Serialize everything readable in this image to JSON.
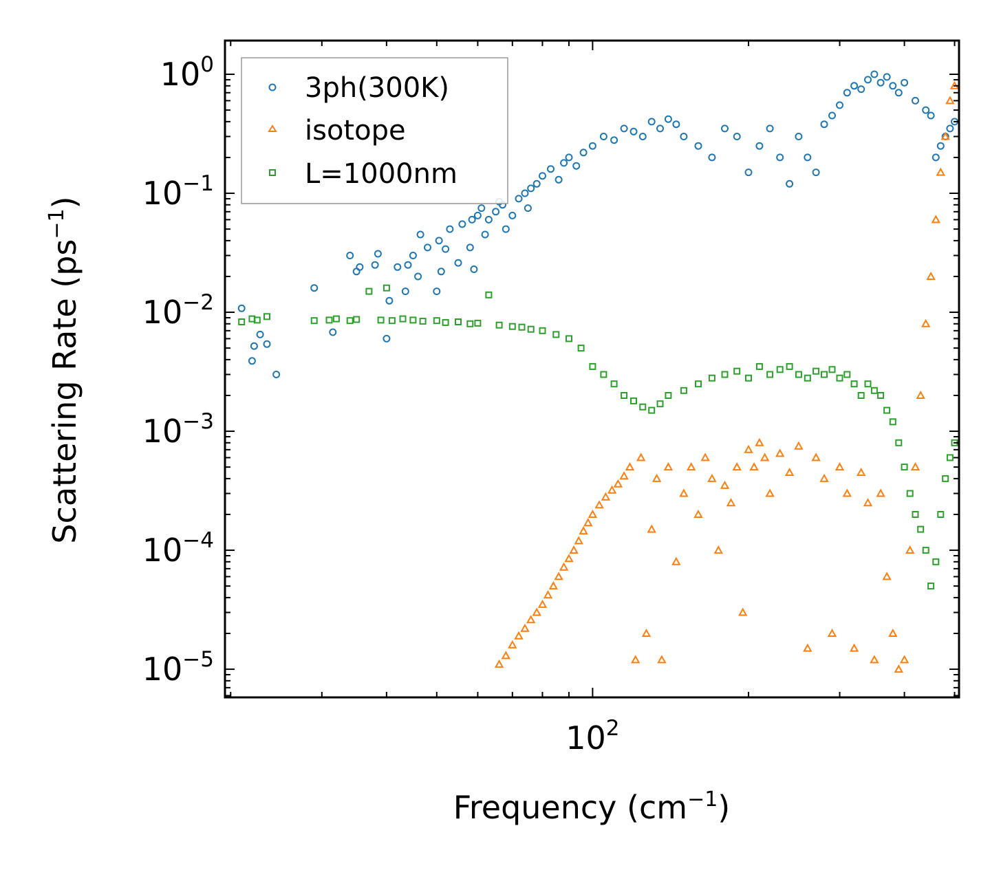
{
  "chart_data": {
    "type": "scatter",
    "title": "",
    "xlabel": "Frequency (cm⁻¹)",
    "xlabel_parts": {
      "base": "Frequency (cm",
      "sup": "−1",
      "end": ")"
    },
    "ylabel": "Scattering Rate (ps⁻¹)",
    "ylabel_parts": {
      "base": "Scattering Rate (ps",
      "sup": "−1",
      "end": ")"
    },
    "xscale": "log",
    "yscale": "log",
    "xlim": [
      19.5,
      510
    ],
    "ylim": [
      5.8e-06,
      1.92
    ],
    "x_ticks": [
      {
        "value": 100,
        "base": "10",
        "exp": "2"
      }
    ],
    "y_ticks": [
      {
        "value": 1,
        "base": "10",
        "exp": "0"
      },
      {
        "value": 0.1,
        "base": "10",
        "exp": "−1"
      },
      {
        "value": 0.01,
        "base": "10",
        "exp": "−2"
      },
      {
        "value": 0.001,
        "base": "10",
        "exp": "−3"
      },
      {
        "value": 0.0001,
        "base": "10",
        "exp": "−4"
      },
      {
        "value": 1e-05,
        "base": "10",
        "exp": "−5"
      }
    ],
    "legend_position": "top-left",
    "series": [
      {
        "name": "3ph(300K)",
        "marker": "circle",
        "color": "#1f77b4",
        "x": [
          21,
          22,
          22.2,
          22.8,
          23.5,
          24.5,
          29,
          31.5,
          34,
          35,
          35.5,
          38,
          38.5,
          40,
          40.5,
          42,
          43.5,
          44,
          45,
          46,
          46.5,
          48,
          50,
          50.5,
          51,
          52,
          53,
          55,
          56,
          58,
          58.5,
          59,
          60,
          61,
          62,
          63,
          65,
          66,
          67,
          68,
          70,
          72,
          74,
          75,
          76,
          78,
          80,
          83,
          86,
          88,
          90,
          93,
          96,
          100,
          105,
          110,
          115,
          120,
          125,
          130,
          135,
          140,
          145,
          150,
          160,
          170,
          180,
          190,
          200,
          210,
          220,
          230,
          240,
          250,
          260,
          270,
          280,
          290,
          300,
          310,
          320,
          330,
          340,
          350,
          360,
          370,
          380,
          390,
          400,
          420,
          440,
          450,
          460,
          470,
          480,
          490,
          500
        ],
        "y": [
          0.0108,
          0.0039,
          0.0052,
          0.0065,
          0.0054,
          0.003,
          0.016,
          0.0068,
          0.03,
          0.022,
          0.024,
          0.025,
          0.031,
          0.006,
          0.0125,
          0.024,
          0.015,
          0.025,
          0.03,
          0.02,
          0.045,
          0.035,
          0.015,
          0.04,
          0.022,
          0.034,
          0.05,
          0.026,
          0.055,
          0.035,
          0.06,
          0.023,
          0.065,
          0.075,
          0.045,
          0.06,
          0.07,
          0.085,
          0.08,
          0.05,
          0.065,
          0.09,
          0.1,
          0.075,
          0.11,
          0.12,
          0.14,
          0.16,
          0.13,
          0.18,
          0.2,
          0.17,
          0.22,
          0.25,
          0.3,
          0.28,
          0.35,
          0.33,
          0.3,
          0.4,
          0.35,
          0.42,
          0.38,
          0.3,
          0.25,
          0.2,
          0.35,
          0.3,
          0.15,
          0.25,
          0.35,
          0.2,
          0.12,
          0.3,
          0.2,
          0.15,
          0.38,
          0.45,
          0.55,
          0.7,
          0.8,
          0.75,
          0.9,
          1.0,
          0.85,
          0.95,
          0.8,
          0.7,
          0.85,
          0.6,
          0.5,
          0.45,
          0.2,
          0.25,
          0.3,
          0.35,
          0.4
        ]
      },
      {
        "name": "isotope",
        "marker": "triangle",
        "color": "#ff7f0e",
        "x": [
          66,
          68,
          70,
          72,
          74,
          76,
          78,
          80,
          82,
          84,
          86,
          88,
          90,
          92,
          94,
          96,
          98,
          100,
          103,
          106,
          109,
          112,
          115,
          118,
          121,
          124,
          127,
          130,
          133,
          136,
          140,
          145,
          150,
          155,
          160,
          165,
          170,
          175,
          180,
          185,
          190,
          195,
          200,
          205,
          210,
          215,
          220,
          230,
          240,
          250,
          260,
          270,
          280,
          290,
          300,
          310,
          320,
          330,
          340,
          350,
          360,
          370,
          380,
          390,
          400,
          410,
          420,
          430,
          440,
          450,
          460,
          470,
          480,
          490,
          500
        ],
        "y": [
          1.1e-05,
          1.3e-05,
          1.6e-05,
          1.9e-05,
          2.2e-05,
          2.6e-05,
          3e-05,
          3.5e-05,
          4.2e-05,
          5e-05,
          6e-05,
          7.2e-05,
          8.5e-05,
          0.0001,
          0.00012,
          0.000145,
          0.00017,
          0.0002,
          0.00024,
          0.00028,
          0.00032,
          0.00036,
          0.00042,
          0.0005,
          1.2e-05,
          0.0006,
          2e-05,
          0.00015,
          0.0004,
          1.2e-05,
          0.0005,
          8e-05,
          0.0003,
          0.0005,
          0.0002,
          0.0006,
          0.0004,
          0.0001,
          0.00035,
          0.00025,
          0.0005,
          3e-05,
          0.0007,
          0.0005,
          0.0008,
          0.0006,
          0.0003,
          0.00065,
          0.00045,
          0.00075,
          1.5e-05,
          0.0006,
          0.0004,
          2e-05,
          0.0005,
          0.0003,
          1.5e-05,
          0.00045,
          0.00025,
          1.2e-05,
          0.0003,
          6e-05,
          2e-05,
          1e-05,
          1.2e-05,
          0.0001,
          0.0005,
          0.002,
          0.008,
          0.02,
          0.06,
          0.15,
          0.3,
          0.6,
          0.8
        ]
      },
      {
        "name": "L=1000nm",
        "marker": "square",
        "color": "#2ca02c",
        "x": [
          21,
          22,
          22.5,
          23.5,
          29,
          31,
          32,
          34,
          35,
          37,
          39,
          40,
          41,
          43,
          45,
          47,
          50,
          52,
          55,
          58,
          60,
          63,
          66,
          70,
          73,
          76,
          80,
          85,
          90,
          95,
          100,
          105,
          110,
          115,
          120,
          125,
          130,
          135,
          140,
          150,
          160,
          170,
          180,
          190,
          200,
          210,
          220,
          230,
          240,
          250,
          260,
          270,
          280,
          290,
          300,
          310,
          320,
          330,
          340,
          350,
          360,
          370,
          380,
          390,
          400,
          410,
          420,
          430,
          440,
          450,
          460,
          470,
          480,
          490,
          500
        ],
        "y": [
          0.0083,
          0.0088,
          0.0086,
          0.0092,
          0.0085,
          0.0086,
          0.0088,
          0.0085,
          0.0087,
          0.015,
          0.0086,
          0.016,
          0.0085,
          0.0088,
          0.0086,
          0.0084,
          0.0085,
          0.0082,
          0.0083,
          0.008,
          0.0081,
          0.014,
          0.0078,
          0.0076,
          0.0075,
          0.0072,
          0.007,
          0.0065,
          0.006,
          0.005,
          0.0035,
          0.003,
          0.0025,
          0.002,
          0.0018,
          0.0016,
          0.0015,
          0.0017,
          0.002,
          0.0022,
          0.0025,
          0.0028,
          0.003,
          0.0032,
          0.0028,
          0.0035,
          0.003,
          0.0033,
          0.0035,
          0.003,
          0.0028,
          0.0032,
          0.003,
          0.0033,
          0.0028,
          0.003,
          0.0025,
          0.002,
          0.0025,
          0.0022,
          0.002,
          0.0015,
          0.0012,
          0.0008,
          0.0005,
          0.0003,
          0.0002,
          0.00015,
          0.0001,
          5e-05,
          8e-05,
          0.0002,
          0.0004,
          0.0006,
          0.0008
        ]
      }
    ]
  }
}
